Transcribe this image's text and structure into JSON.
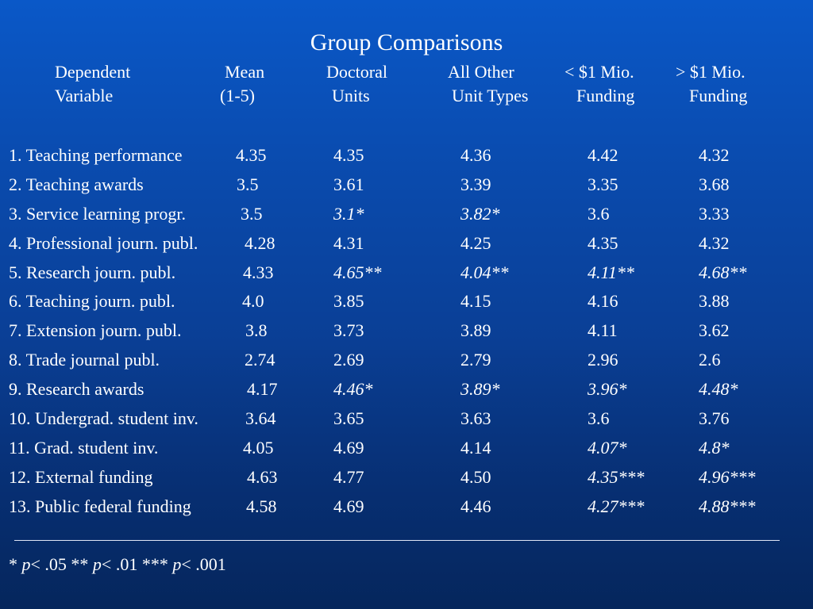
{
  "title": "Group Comparisons",
  "headers": [
    {
      "line1": "Dependent",
      "line2": "Variable"
    },
    {
      "line1": "Mean",
      "line2": "(1-5)"
    },
    {
      "line1": "Doctoral",
      "line2": "Units"
    },
    {
      "line1": "All Other",
      "line2": "Unit Types"
    },
    {
      "line1": "< $1 Mio.",
      "line2": "Funding"
    },
    {
      "line1": "> $1 Mio.",
      "line2": "Funding"
    }
  ],
  "rows": [
    {
      "label": "1. Teaching performance",
      "mean": "4.35",
      "doctoral": "4.35",
      "other": "4.36",
      "under1m": "4.42",
      "over1m": "4.32"
    },
    {
      "label": "2.  Teaching awards",
      "mean": "3.5",
      "doctoral": "3.61",
      "other": "3.39",
      "under1m": "3.35",
      "over1m": "3.68"
    },
    {
      "label": "3.  Service learning progr.",
      "mean": "3.5",
      "doctoral": "3.1*",
      "other": "3.82*",
      "under1m": "3.6",
      "over1m": "3.33"
    },
    {
      "label": "4.  Professional journ. publ.",
      "mean": "4.28",
      "doctoral": "4.31",
      "other": "4.25",
      "under1m": "4.35",
      "over1m": "4.32"
    },
    {
      "label": "5.  Research journ. publ.",
      "mean": "4.33",
      "doctoral": "4.65**",
      "other": "4.04**",
      "under1m": "4.11**",
      "over1m": "4.68**"
    },
    {
      "label": "6. Teaching journ. publ.",
      "mean": "4.0",
      "doctoral": "3.85",
      "other": "4.15",
      "under1m": "4.16",
      "over1m": "3.88"
    },
    {
      "label": "7.  Extension journ. publ.",
      "mean": "3.8",
      "doctoral": "3.73",
      "other": "3.89",
      "under1m": "4.11",
      "over1m": "3.62"
    },
    {
      "label": "8. Trade journal publ.",
      "mean": "2.74",
      "doctoral": "2.69",
      "other": "2.79",
      "under1m": "2.96",
      "over1m": "2.6"
    },
    {
      "label": "9.  Research awards",
      "mean": "4.17",
      "doctoral": "4.46*",
      "other": "3.89*",
      "under1m": "3.96*",
      "over1m": "4.48*"
    },
    {
      "label": "10. Undergrad. student inv.",
      "mean": "3.64",
      "doctoral": "3.65",
      "other": "3.63",
      "under1m": "3.6",
      "over1m": "3.76"
    },
    {
      "label": "11. Grad. student inv.",
      "mean": "4.05",
      "doctoral": "4.69",
      "other": "4.14",
      "under1m": "4.07*",
      "over1m": "4.8*"
    },
    {
      "label": "12. External funding",
      "mean": "4.63",
      "doctoral": "4.77",
      "other": "4.50",
      "under1m": "4.35***",
      "over1m": "4.96***"
    },
    {
      "label": "13. Public federal funding",
      "mean": "4.58",
      "doctoral": "4.69",
      "other": "4.46",
      "under1m": "4.27***",
      "over1m": "4.88***"
    }
  ],
  "footnote": {
    "s1": "* ",
    "p1": "p",
    "t1": "< .05 ** ",
    "p2": "p",
    "t2": "< .01 *** ",
    "p3": "p",
    "t3": "< .001"
  }
}
